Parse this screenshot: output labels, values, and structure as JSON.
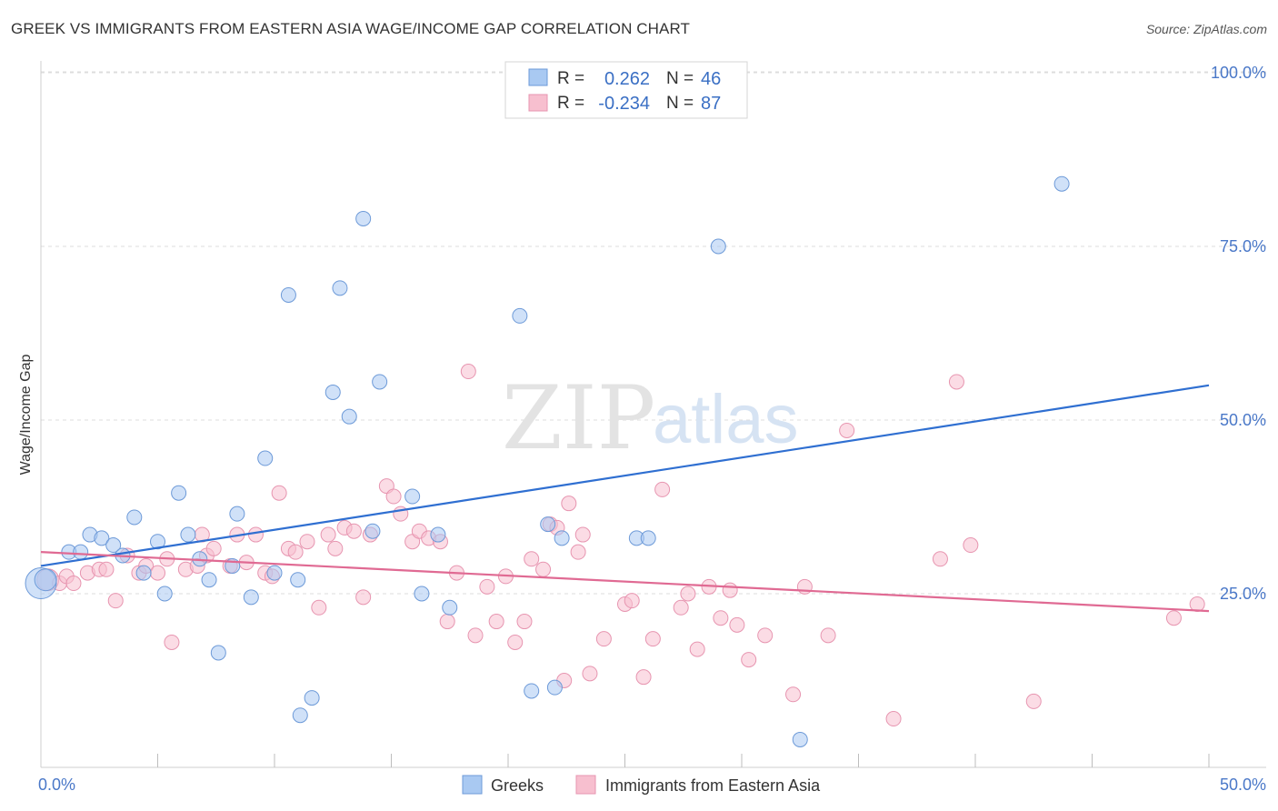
{
  "title": "GREEK VS IMMIGRANTS FROM EASTERN ASIA WAGE/INCOME GAP CORRELATION CHART",
  "source": "Source: ZipAtlas.com",
  "watermark": {
    "zip": "ZIP",
    "atlas": "atlas"
  },
  "stats": [
    {
      "r_label": "R =",
      "r_value": "0.262",
      "n_label": "N =",
      "n_value": "46",
      "color": "#a9c9f2"
    },
    {
      "r_label": "R =",
      "r_value": "-0.234",
      "n_label": "N =",
      "n_value": "87",
      "color": "#f7bfcf"
    }
  ],
  "chart_data": {
    "type": "scatter",
    "title": "GREEK VS IMMIGRANTS FROM EASTERN ASIA WAGE/INCOME GAP CORRELATION CHART",
    "xlabel": "",
    "ylabel": "Wage/Income Gap",
    "xlim": [
      0,
      50
    ],
    "ylim": [
      0,
      105
    ],
    "x_tick_labels": [
      "0.0%",
      "50.0%"
    ],
    "y_ticks": [
      25,
      50,
      75,
      100
    ],
    "y_tick_labels": [
      "25.0%",
      "50.0%",
      "75.0%",
      "100.0%"
    ],
    "grid": true,
    "legend_position": "bottom-center",
    "series": [
      {
        "name": "Greeks",
        "fill": "#a9c9f2",
        "stroke": "#6d9ad8",
        "line_color": "#2f6fd1",
        "trend": {
          "x": [
            0,
            50
          ],
          "y": [
            29,
            55
          ]
        },
        "points": [
          [
            0.0,
            26.5,
            3
          ],
          [
            0.2,
            27,
            2
          ],
          [
            1.2,
            31,
            1
          ],
          [
            1.7,
            31,
            1
          ],
          [
            2.1,
            33.5,
            1
          ],
          [
            2.6,
            33,
            1
          ],
          [
            3.1,
            32,
            1
          ],
          [
            3.5,
            30.5,
            1
          ],
          [
            4.0,
            36,
            1
          ],
          [
            4.4,
            28,
            1
          ],
          [
            5.0,
            32.5,
            1
          ],
          [
            5.3,
            25,
            1
          ],
          [
            5.9,
            39.5,
            1
          ],
          [
            6.3,
            33.5,
            1
          ],
          [
            6.8,
            30,
            1
          ],
          [
            7.2,
            27,
            1
          ],
          [
            7.6,
            16.5,
            1
          ],
          [
            8.2,
            29,
            1
          ],
          [
            8.4,
            36.5,
            1
          ],
          [
            9.0,
            24.5,
            1
          ],
          [
            9.6,
            44.5,
            1
          ],
          [
            10.0,
            28,
            1
          ],
          [
            10.6,
            68,
            1
          ],
          [
            11.0,
            27,
            1
          ],
          [
            11.6,
            10,
            1
          ],
          [
            11.1,
            7.5,
            1
          ],
          [
            12.5,
            54,
            1
          ],
          [
            12.8,
            69,
            1
          ],
          [
            13.2,
            50.5,
            1
          ],
          [
            13.8,
            79,
            1
          ],
          [
            14.5,
            55.5,
            1
          ],
          [
            14.2,
            34,
            1
          ],
          [
            15.9,
            39,
            1
          ],
          [
            16.3,
            25,
            1
          ],
          [
            17.0,
            33.5,
            1
          ],
          [
            17.5,
            23,
            1
          ],
          [
            20.5,
            65,
            1
          ],
          [
            21.0,
            11,
            1
          ],
          [
            21.7,
            35,
            1
          ],
          [
            22.0,
            11.5,
            1
          ],
          [
            22.3,
            33,
            1
          ],
          [
            25.5,
            33,
            1
          ],
          [
            26.0,
            33,
            1
          ],
          [
            29.0,
            75,
            1
          ],
          [
            32.5,
            4,
            1
          ],
          [
            43.7,
            84,
            1
          ]
        ]
      },
      {
        "name": "Immigrants from Eastern Asia",
        "fill": "#f7bfcf",
        "stroke": "#e795b0",
        "line_color": "#e06a93",
        "trend": {
          "x": [
            0,
            50
          ],
          "y": [
            31,
            22.5
          ]
        },
        "points": [
          [
            0.3,
            27,
            2
          ],
          [
            0.8,
            26.5,
            1
          ],
          [
            1.1,
            27.5,
            1
          ],
          [
            1.4,
            26.5,
            1
          ],
          [
            2.0,
            28,
            1
          ],
          [
            2.5,
            28.5,
            1
          ],
          [
            2.8,
            28.5,
            1
          ],
          [
            3.2,
            24,
            1
          ],
          [
            3.7,
            30.5,
            1
          ],
          [
            4.2,
            28,
            1
          ],
          [
            4.5,
            29,
            1
          ],
          [
            5.0,
            28,
            1
          ],
          [
            5.4,
            30,
            1
          ],
          [
            5.6,
            18,
            1
          ],
          [
            6.2,
            28.5,
            1
          ],
          [
            6.7,
            29,
            1
          ],
          [
            6.9,
            33.5,
            1
          ],
          [
            7.1,
            30.5,
            1
          ],
          [
            7.4,
            31.5,
            1
          ],
          [
            8.1,
            29,
            1
          ],
          [
            8.4,
            33.5,
            1
          ],
          [
            8.8,
            29.5,
            1
          ],
          [
            9.2,
            33.5,
            1
          ],
          [
            9.6,
            28,
            1
          ],
          [
            9.9,
            27.5,
            1
          ],
          [
            10.2,
            39.5,
            1
          ],
          [
            10.6,
            31.5,
            1
          ],
          [
            10.9,
            31,
            1
          ],
          [
            11.4,
            32.5,
            1
          ],
          [
            11.9,
            23,
            1
          ],
          [
            12.3,
            33.5,
            1
          ],
          [
            12.6,
            31.5,
            1
          ],
          [
            13.0,
            34.5,
            1
          ],
          [
            13.4,
            34,
            1
          ],
          [
            13.8,
            24.5,
            1
          ],
          [
            14.1,
            33.5,
            1
          ],
          [
            14.8,
            40.5,
            1
          ],
          [
            15.1,
            39,
            1
          ],
          [
            15.4,
            36.5,
            1
          ],
          [
            15.9,
            32.5,
            1
          ],
          [
            16.2,
            34,
            1
          ],
          [
            16.6,
            33,
            1
          ],
          [
            17.1,
            32.5,
            1
          ],
          [
            17.4,
            21,
            1
          ],
          [
            17.8,
            28,
            1
          ],
          [
            18.3,
            57,
            1
          ],
          [
            18.6,
            19,
            1
          ],
          [
            19.1,
            26,
            1
          ],
          [
            19.5,
            21,
            1
          ],
          [
            19.9,
            27.5,
            1
          ],
          [
            20.3,
            18,
            1
          ],
          [
            20.7,
            21,
            1
          ],
          [
            21.0,
            30,
            1
          ],
          [
            21.5,
            28.5,
            1
          ],
          [
            21.8,
            35,
            1
          ],
          [
            22.1,
            34.5,
            1
          ],
          [
            22.4,
            12.5,
            1
          ],
          [
            22.6,
            38,
            1
          ],
          [
            23.0,
            31,
            1
          ],
          [
            23.2,
            33.5,
            1
          ],
          [
            23.5,
            13.5,
            1
          ],
          [
            24.1,
            18.5,
            1
          ],
          [
            25.0,
            23.5,
            1
          ],
          [
            25.3,
            24,
            1
          ],
          [
            25.8,
            13,
            1
          ],
          [
            26.2,
            18.5,
            1
          ],
          [
            26.6,
            40,
            1
          ],
          [
            27.4,
            23,
            1
          ],
          [
            27.7,
            25,
            1
          ],
          [
            28.1,
            17,
            1
          ],
          [
            28.6,
            26,
            1
          ],
          [
            29.1,
            21.5,
            1
          ],
          [
            29.5,
            25.5,
            1
          ],
          [
            29.8,
            20.5,
            1
          ],
          [
            30.3,
            15.5,
            1
          ],
          [
            31.0,
            19,
            1
          ],
          [
            32.2,
            10.5,
            1
          ],
          [
            32.7,
            26,
            1
          ],
          [
            33.7,
            19,
            1
          ],
          [
            34.5,
            48.5,
            1
          ],
          [
            36.5,
            7,
            1
          ],
          [
            38.5,
            30,
            1
          ],
          [
            39.2,
            55.5,
            1
          ],
          [
            39.8,
            32,
            1
          ],
          [
            42.5,
            9.5,
            1
          ],
          [
            48.5,
            21.5,
            1
          ],
          [
            49.5,
            23.5,
            1
          ]
        ]
      }
    ]
  }
}
